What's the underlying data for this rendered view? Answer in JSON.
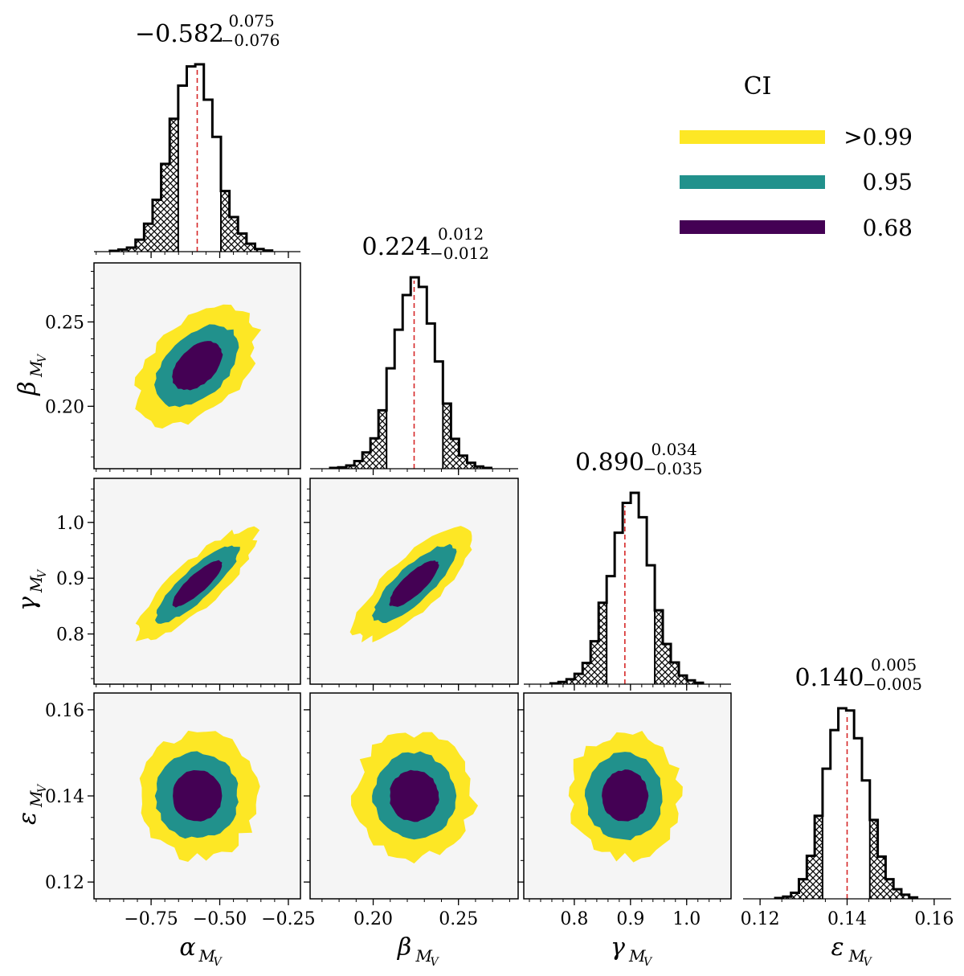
{
  "chart_data": {
    "type": "corner",
    "title": "",
    "parameters": [
      {
        "key": "alpha",
        "symbol": "α",
        "subscript": "M",
        "subsub": "V",
        "range": [
          -0.958,
          -0.206
        ],
        "ticks": [
          -0.75,
          -0.5,
          -0.25
        ],
        "tick_labels": [
          "−0.75",
          "−0.50",
          "−0.25"
        ],
        "minor_step": 0.05,
        "median": -0.582,
        "err_plus": 0.075,
        "err_minus": -0.076,
        "stat_main": "−0.582",
        "stat_plus": "0.075",
        "stat_minus": "−0.076",
        "hist": {
          "start": -0.9,
          "bin_width": 0.0311,
          "counts": [
            3,
            8,
            15,
            45,
            105,
            195,
            330,
            500,
            625,
            697,
            705,
            572,
            432,
            228,
            130,
            68,
            30,
            10,
            4
          ],
          "hatch_below": -0.664,
          "hatch_above": -0.485
        }
      },
      {
        "key": "beta",
        "symbol": "β",
        "subscript": "M",
        "subsub": "V",
        "range": [
          0.163,
          0.285
        ],
        "ticks": [
          0.2,
          0.25
        ],
        "tick_labels": [
          "0.20",
          "0.25"
        ],
        "minor_step": 0.01,
        "median": 0.224,
        "err_plus": 0.012,
        "err_minus": -0.012,
        "stat_main": "0.224",
        "stat_plus": "0.012",
        "stat_minus": "−0.012",
        "hist": {
          "start": 0.1748,
          "bin_width": 0.00472,
          "counts": [
            3,
            5,
            12,
            28,
            60,
            112,
            215,
            370,
            512,
            640,
            705,
            670,
            535,
            395,
            240,
            110,
            48,
            22,
            8,
            3
          ],
          "hatch_below": 0.2078,
          "hatch_above": 0.24
        }
      },
      {
        "key": "gamma",
        "symbol": "γ",
        "subscript": "M",
        "subsub": "V",
        "range": [
          0.71,
          1.079
        ],
        "ticks": [
          0.8,
          0.9,
          1.0
        ],
        "tick_labels": [
          "0.8",
          "0.9",
          "1.0"
        ],
        "minor_step": 0.02,
        "median": 0.89,
        "err_plus": 0.034,
        "err_minus": -0.035,
        "stat_main": "0.890",
        "stat_plus": "0.034",
        "stat_minus": "−0.035",
        "hist": {
          "start": 0.7576,
          "bin_width": 0.01428,
          "counts": [
            3,
            8,
            18,
            38,
            78,
            158,
            300,
            398,
            558,
            668,
            705,
            615,
            438,
            272,
            148,
            80,
            32,
            14,
            5
          ],
          "hatch_below": 0.8576,
          "hatch_above": 0.9433
        }
      },
      {
        "key": "epsilon",
        "symbol": "ε",
        "subscript": "M",
        "subsub": "V",
        "range": [
          0.1161,
          0.1639
        ],
        "ticks": [
          0.12,
          0.14,
          0.16
        ],
        "tick_labels": [
          "0.12",
          "0.14",
          "0.16"
        ],
        "minor_step": 0.005,
        "median": 0.14,
        "err_plus": 0.005,
        "err_minus": -0.005,
        "stat_main": "0.140",
        "stat_plus": "0.005",
        "stat_minus": "−0.005",
        "hist": {
          "start": 0.1235,
          "bin_width": 0.00181,
          "counts": [
            3,
            8,
            22,
            72,
            158,
            305,
            478,
            620,
            700,
            692,
            590,
            435,
            290,
            155,
            72,
            35,
            15,
            5
          ],
          "hatch_below": 0.1347,
          "hatch_above": 0.1457
        }
      }
    ],
    "y_tick_overrides": {
      "beta": {
        "ticks": [
          0.2,
          0.25
        ],
        "tick_labels": [
          "0.20",
          "0.25"
        ]
      },
      "gamma": {
        "ticks": [
          0.8,
          0.9,
          1.0
        ],
        "tick_labels": [
          "0.8",
          "0.9",
          "1.0"
        ]
      },
      "epsilon": {
        "ticks": [
          0.12,
          0.14,
          0.16
        ],
        "tick_labels": [
          "0.12",
          "0.14",
          "0.16"
        ]
      }
    },
    "correlations": {
      "alpha-beta": 0.45,
      "alpha-gamma": 0.85,
      "beta-gamma": 0.8,
      "alpha-epsilon": 0.0,
      "beta-epsilon": 0.0,
      "gamma-epsilon": 0.0
    },
    "contour_levels": [
      {
        "label": ">0.99",
        "sigma": 2.9,
        "color": "#fde725"
      },
      {
        "label": "0.95",
        "sigma": 2.0,
        "color": "#21918c"
      },
      {
        "label": "0.68",
        "sigma": 1.2,
        "color": "#440154"
      }
    ],
    "panel_background": "#f5f5f5",
    "median_line_color": "#d62728",
    "legend": {
      "title": "CI",
      "placement": "top-right",
      "entries": [
        {
          "label": ">0.99",
          "color": "#fde725"
        },
        {
          "label": "0.95",
          "color": "#21918c"
        },
        {
          "label": "0.68",
          "color": "#440154"
        }
      ]
    },
    "grid": false
  }
}
